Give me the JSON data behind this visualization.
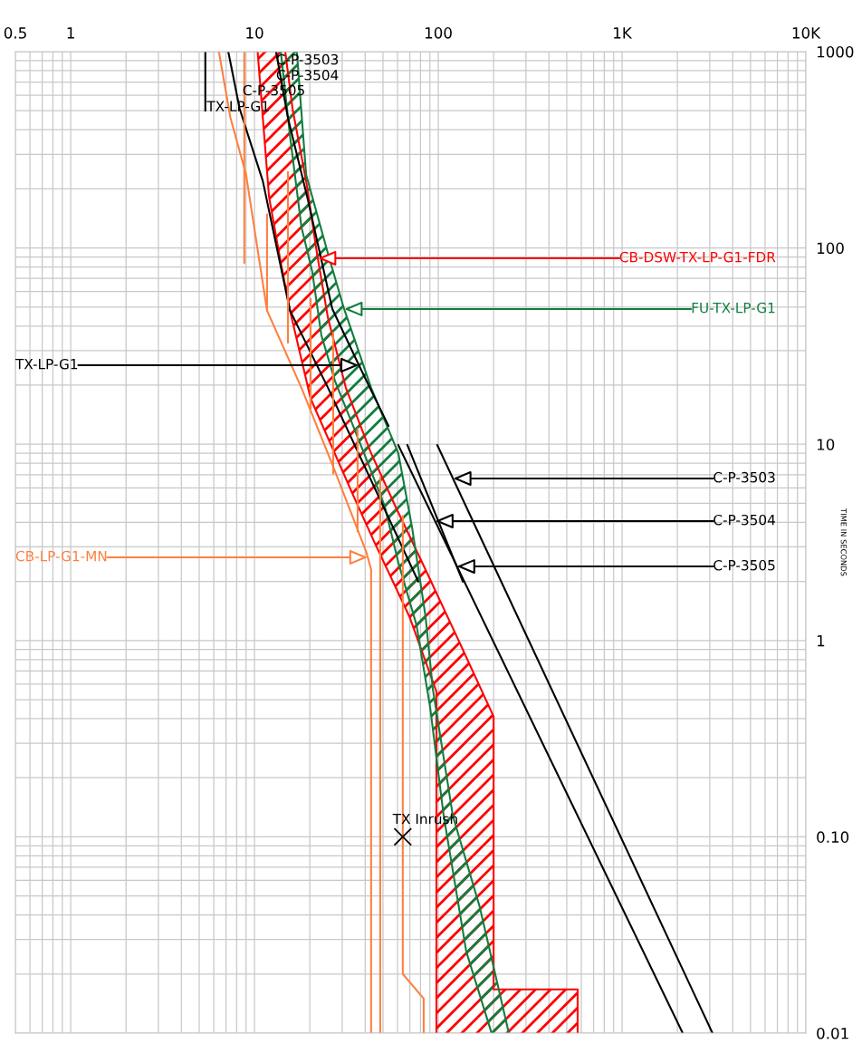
{
  "chart_data": {
    "type": "line",
    "ylabel": "TIME IN SECONDS",
    "log": "xy",
    "grid": true,
    "legend": false,
    "xlim": [
      0.5,
      10000
    ],
    "ylim": [
      0.01,
      1000
    ],
    "xticks": [
      0.5,
      1,
      10,
      100,
      {
        "value": 1000,
        "label": "1K"
      },
      {
        "value": 10000,
        "label": "10K"
      }
    ],
    "yticks": [
      1000,
      100,
      10,
      1,
      {
        "value": 0.1,
        "label": "0.10"
      },
      0.01
    ],
    "series": [
      {
        "name": "CB-DSW-TX-LP-G1-FDR",
        "color": "#ff0000",
        "x": [
          14.7,
          16.1,
          19.1,
          21.9,
          25.1,
          31.4,
          43.1,
          58.6,
          85.2,
          131,
          200,
          200,
          573,
          573
        ],
        "values": [
          1000,
          512,
          219,
          93,
          44,
          19.4,
          9.0,
          4.8,
          2.3,
          0.97,
          0.41,
          0.0167,
          0.0167,
          0.01
        ]
      },
      {
        "color": "#ff0000",
        "x": [
          10.4,
          11.1,
          12.0,
          13.9,
          15.6,
          20.2,
          34.4,
          44.7,
          69.5,
          97.7,
          97.7
        ],
        "values": [
          1000,
          460,
          182,
          84,
          48,
          17.1,
          5.5,
          3.2,
          1.33,
          0.55,
          0.01
        ]
      },
      {
        "name": "FU-TX-LP-G1",
        "color": "#127d3e",
        "x": [
          17.0,
          19.1,
          25.4,
          30.7,
          43.1,
          60.6,
          71.9,
          85.2,
          93.3,
          120,
          168,
          242
        ],
        "values": [
          1000,
          236,
          90,
          49,
          19.4,
          9.0,
          3.8,
          1.33,
          0.57,
          0.128,
          0.044,
          0.01
        ]
      },
      {
        "color": "#127d3e",
        "x": [
          13.9,
          15.6,
          18.0,
          20.6,
          23.1,
          27.4,
          34.4,
          43.1,
          51.2,
          60.6,
          76.1,
          90.2,
          107,
          142,
          195
        ],
        "values": [
          1000,
          373,
          128,
          76,
          36,
          21,
          12.4,
          7.3,
          4.8,
          2.5,
          1.2,
          0.46,
          0.128,
          0.026,
          0.01
        ]
      },
      {
        "name": "TX-LP-G1",
        "color": "#000000",
        "x": [
          5.4,
          5.4,
          null,
          13.1,
          15.2,
          19.5,
          26.5,
          37.2,
          53.6
        ],
        "values": [
          1000,
          501,
          null,
          1000,
          460,
          177,
          49,
          25,
          12.4
        ]
      },
      {
        "name": "C-P-3503",
        "color": "#000000",
        "x": [
          98.8,
          3105
        ],
        "values": [
          9.9,
          0.01
        ]
      },
      {
        "name": "C-P-3504",
        "color": "#000000",
        "x": [
          60.6,
          2138
        ],
        "values": [
          9.9,
          0.01
        ]
      },
      {
        "name": "C-P-3505",
        "color": "#000000",
        "x": [
          67.9,
          136
        ],
        "values": [
          9.9,
          2.0
        ]
      },
      {
        "color": "#000000",
        "x": [
          7.2,
          8.3,
          11.1,
          15.6,
          25.1,
          77.8
        ],
        "values": [
          1000,
          512,
          219,
          48,
          19.4,
          2.0
        ]
      },
      {
        "name": "CB-LP-G1-MN",
        "color": "#ff8040",
        "x": [
          6.4,
          7.4,
          9.0,
          11.7,
          18.0,
          27.4,
          40.7,
          43.1,
          43.1,
          null,
          8.8,
          8.8,
          null,
          11.7,
          11.7,
          null,
          15.2,
          15.2,
          null,
          20.2,
          20.2,
          null,
          26.8,
          26.8,
          null,
          36.4,
          36.4,
          null,
          48.3,
          48.3,
          null,
          64.1,
          64.1,
          83.3,
          83.3
        ],
        "values": [
          1000,
          460,
          236,
          48,
          19.4,
          7.3,
          2.8,
          2.3,
          0.01,
          null,
          1000,
          84,
          null,
          148,
          48,
          null,
          243,
          33,
          null,
          55,
          15.3,
          null,
          37,
          7.1,
          null,
          12,
          3.6,
          null,
          6.8,
          0.01,
          null,
          4.3,
          0.02,
          0.015,
          0.01
        ]
      },
      {
        "name": "TX Inrush",
        "type": "scatter",
        "marker": "cross",
        "color": "#000000",
        "x": [
          64.1
        ],
        "values": [
          0.1
        ]
      }
    ],
    "annotations": [
      {
        "text": "C-P-3503",
        "x": 13.1,
        "y": 900
      },
      {
        "text": "C-P-3504",
        "x": 13.1,
        "y": 750
      },
      {
        "text": "C-P-3505",
        "x": 8.6,
        "y": 627
      },
      {
        "text": "TX-LP-G1",
        "x": 5.5,
        "y": 520
      }
    ]
  }
}
